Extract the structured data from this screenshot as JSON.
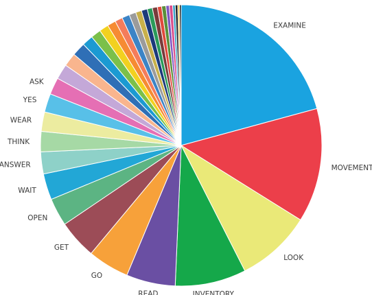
{
  "chart_data": {
    "type": "pie",
    "title": "",
    "slices": [
      {
        "label": "EXAMINE",
        "value": 21.4,
        "color": "#1aa3e0"
      },
      {
        "label": "MOVEMENT",
        "value": 13.5,
        "color": "#ec3f4a"
      },
      {
        "label": "LOOK",
        "value": 8.9,
        "color": "#eae978"
      },
      {
        "label": "INVENTORY",
        "value": 8.4,
        "color": "#15a84a"
      },
      {
        "label": "READ",
        "value": 5.8,
        "color": "#6a4fa3"
      },
      {
        "label": "GO",
        "value": 4.9,
        "color": "#f7a13a"
      },
      {
        "label": "GET",
        "value": 4.6,
        "color": "#9c4c57"
      },
      {
        "label": "OPEN",
        "value": 3.3,
        "color": "#5cb483"
      },
      {
        "label": "WAIT",
        "value": 3.1,
        "color": "#22a7d6"
      },
      {
        "label": "ANSWER",
        "value": 2.6,
        "color": "#8ed1c8"
      },
      {
        "label": "THINK",
        "value": 2.4,
        "color": "#a6d9a5"
      },
      {
        "label": "WEAR",
        "value": 2.3,
        "color": "#ececa0"
      },
      {
        "label": "YES",
        "value": 2.2,
        "color": "#58c0e8"
      },
      {
        "label": "ASK",
        "value": 2.0,
        "color": "#e56fb4"
      },
      {
        "label": "",
        "value": 1.8,
        "color": "#c4a8d8"
      },
      {
        "label": "",
        "value": 1.6,
        "color": "#f9b58e"
      },
      {
        "label": "",
        "value": 1.6,
        "color": "#2f6fb6"
      },
      {
        "label": "",
        "value": 1.3,
        "color": "#1b9ad2"
      },
      {
        "label": "",
        "value": 1.2,
        "color": "#7bc04a"
      },
      {
        "label": "",
        "value": 1.1,
        "color": "#f2d11f"
      },
      {
        "label": "",
        "value": 1.0,
        "color": "#f68b33"
      },
      {
        "label": "",
        "value": 0.9,
        "color": "#f47c5b"
      },
      {
        "label": "",
        "value": 0.9,
        "color": "#3c84c6"
      },
      {
        "label": "",
        "value": 0.8,
        "color": "#9b9b9b"
      },
      {
        "label": "",
        "value": 0.7,
        "color": "#c8b04a"
      },
      {
        "label": "",
        "value": 0.7,
        "color": "#1c3a7a"
      },
      {
        "label": "",
        "value": 0.6,
        "color": "#2a9a5a"
      },
      {
        "label": "",
        "value": 0.6,
        "color": "#7a3b3b"
      },
      {
        "label": "",
        "value": 0.5,
        "color": "#e0493c"
      },
      {
        "label": "",
        "value": 0.5,
        "color": "#5a8f3a"
      },
      {
        "label": "",
        "value": 0.4,
        "color": "#7e57c2"
      },
      {
        "label": "",
        "value": 0.4,
        "color": "#d94d8a"
      },
      {
        "label": "",
        "value": 0.3,
        "color": "#3aa0c8"
      },
      {
        "label": "",
        "value": 0.3,
        "color": "#222222"
      },
      {
        "label": "",
        "value": 0.2,
        "color": "#f5c542"
      },
      {
        "label": "",
        "value": 0.2,
        "color": "#111111"
      }
    ]
  }
}
